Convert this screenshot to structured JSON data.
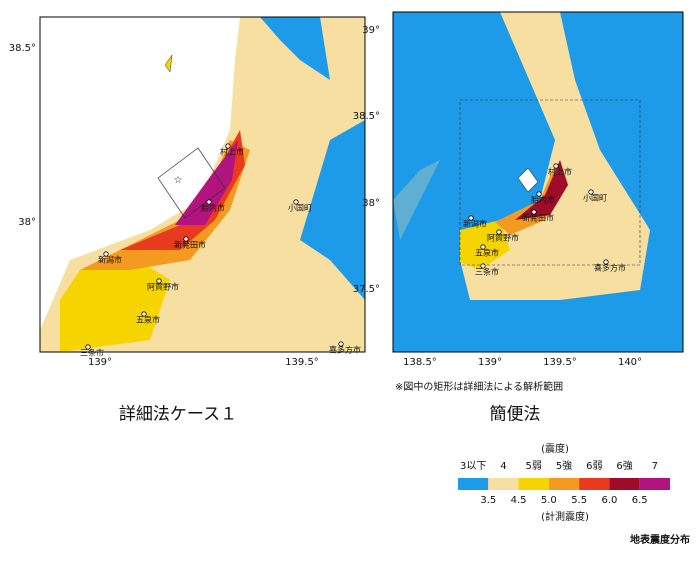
{
  "maps": [
    {
      "caption": "詳細法ケース１",
      "lat_ticks": [
        "38.5°",
        "38°"
      ],
      "lon_ticks": [
        "139°",
        "139.5°"
      ],
      "cities": [
        "村上市",
        "胎内市",
        "新発田市",
        "新潟市",
        "阿賀野市",
        "五泉市",
        "三条市",
        "喜多方市",
        "小国町"
      ]
    },
    {
      "caption": "簡便法",
      "lat_ticks": [
        "39°",
        "38.5°",
        "38°",
        "37.5°"
      ],
      "lon_ticks": [
        "138.5°",
        "139°",
        "139.5°",
        "140°"
      ],
      "cities": [
        "村上市",
        "胎内市",
        "新発田市",
        "新潟市",
        "阿賀野市",
        "五泉市",
        "三条市",
        "喜多方市",
        "小国町"
      ]
    }
  ],
  "note": "※図中の矩形は詳細法による解析範囲",
  "legend": {
    "title": "(震度)",
    "intensity_labels": [
      "3以下",
      "4",
      "5弱",
      "5強",
      "6弱",
      "6強",
      "7"
    ],
    "colors": [
      "#1e9be8",
      "#f6dfa0",
      "#f5d400",
      "#f59a20",
      "#e83a1e",
      "#9e0c2a",
      "#b3137f"
    ],
    "boundaries": [
      "3.5",
      "4.5",
      "5.0",
      "5.5",
      "6.0",
      "6.5"
    ],
    "measured_label": "(計測震度)"
  },
  "title": "地表震度分布"
}
